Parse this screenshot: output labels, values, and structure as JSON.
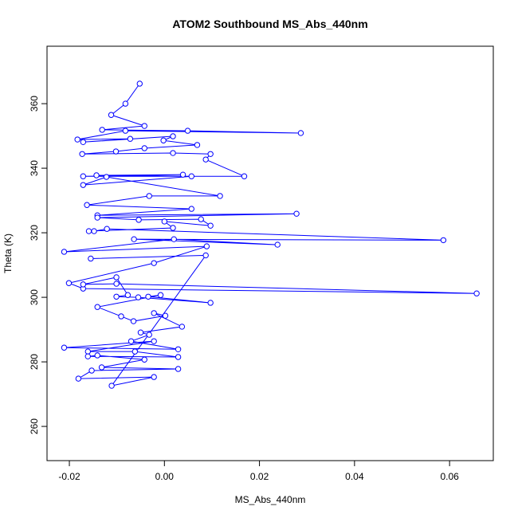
{
  "chart_data": {
    "type": "line",
    "title": "ATOM2 Southbound MS_Abs_440nm",
    "x_label": "MS_Abs_440nm",
    "y_label": "Theta (K)",
    "color": "#0000ff",
    "x": [
      -0.0052,
      -0.0082,
      -0.0112,
      -0.0042,
      -0.0131,
      0.0049,
      0.0287,
      -0.0082,
      -0.0183,
      -0.0072,
      -0.0171,
      0.0018,
      -0.0002,
      0.0069,
      -0.0042,
      -0.0102,
      -0.0173,
      0.0018,
      0.0097,
      0.0087,
      0.0168,
      -0.0171,
      0.0039,
      -0.0143,
      0.0057,
      -0.0171,
      -0.0122,
      0.0117,
      -0.0032,
      -0.0163,
      0.0057,
      -0.0141,
      0.0278,
      -0.0141,
      -0.0054,
      0.0077,
      0.0097,
      0,
      0.0018,
      -0.0159,
      -0.0148,
      -0.0121,
      0.0587,
      -0.0064,
      0.0238,
      0.002,
      -0.0211,
      0.0089,
      -0.0022,
      -0.0201,
      -0.0171,
      0.0657,
      -0.0101,
      -0.0171,
      -0.0101,
      -0.0077,
      -0.0101,
      -0.0055,
      0.0097,
      -0.0034,
      -0.0008,
      -0.0141,
      -0.0091,
      -0.0065,
      0.0002,
      -0.0022,
      0.0037,
      -0.005,
      -0.0032,
      -0.007,
      0.0029,
      -0.0211,
      -0.0022,
      -0.0161,
      -0.0062,
      0.0029,
      -0.0161,
      -0.0141,
      -0.0042,
      -0.0132,
      0.0029,
      -0.0153,
      -0.0181,
      -0.0022,
      -0.0111,
      0.0087,
      -0.0155
    ],
    "values": [
      366.2,
      360,
      356.5,
      353.1,
      351.9,
      351.6,
      350.9,
      351.6,
      348.9,
      349.1,
      348.1,
      349.9,
      348.6,
      347.2,
      346.2,
      345.2,
      344.4,
      344.7,
      344.4,
      342.7,
      337.5,
      337.5,
      338.0,
      337.8,
      337.5,
      334.8,
      337.3,
      331.4,
      331.4,
      328.6,
      327.4,
      325.4,
      325.9,
      324.7,
      324.0,
      324.2,
      322.2,
      323.5,
      321.5,
      320.5,
      320.5,
      321.2,
      317.7,
      318.0,
      316.3,
      318.0,
      314.1,
      315.8,
      310.6,
      304.4,
      302.7,
      301.2,
      304.2,
      304.0,
      306.2,
      300.7,
      300.2,
      300.0,
      298.3,
      300.2,
      300.7,
      297.0,
      294.1,
      292.6,
      294.3,
      295.1,
      290.9,
      289.1,
      288.4,
      286.4,
      283.9,
      284.4,
      286.4,
      283.2,
      283.2,
      281.5,
      281.7,
      282.0,
      280.7,
      278.3,
      277.8,
      277.3,
      274.8,
      275.3,
      272.6,
      313.0,
      312.0
    ],
    "xlim": [
      -0.0247,
      0.0692
    ],
    "ylim": [
      249.4,
      377.8
    ],
    "xticks": [
      -0.02,
      {
        "value": 0,
        "label": "0.00"
      },
      {
        "value": 0.02,
        "label": "0.02"
      },
      {
        "value": 0.04,
        "label": "0.04"
      },
      {
        "value": 0.06,
        "label": "0.06"
      }
    ],
    "yticks": [
      260,
      280,
      300,
      320,
      340,
      360
    ]
  }
}
